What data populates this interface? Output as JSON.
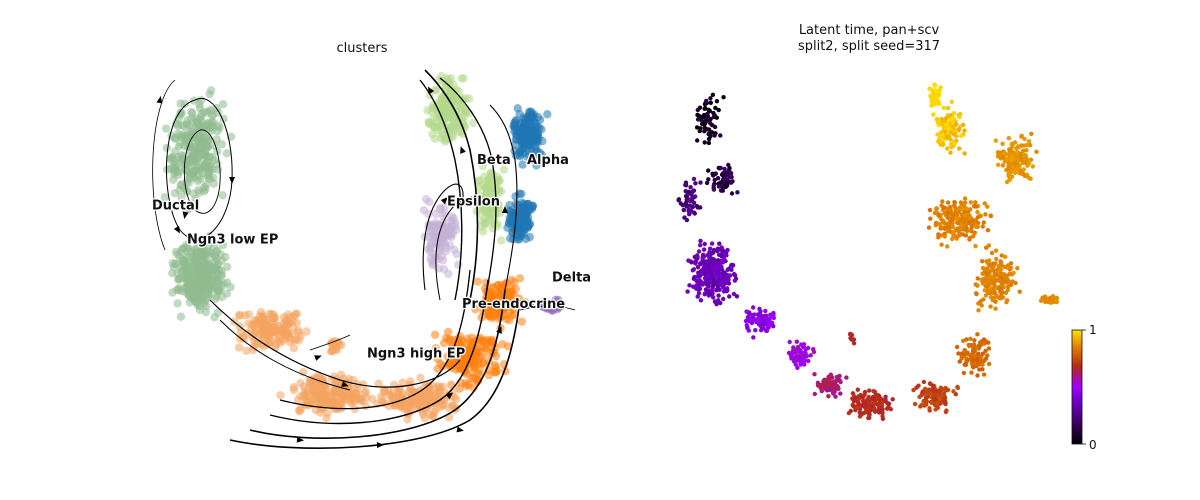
{
  "chart_data": [
    {
      "type": "scatter",
      "subtype": "velocity-stream-embedding",
      "title": "clusters",
      "axes_visible": false,
      "grid": false,
      "clusters": [
        {
          "name": "Ductal",
          "color": "#8fbc8f",
          "label_pos": [
            -4.2,
            0.7
          ]
        },
        {
          "name": "Ngn3 low EP",
          "color": "#8fbc8f",
          "label_pos": [
            -3.5,
            -0.2
          ]
        },
        {
          "name": "Ngn3 high EP",
          "color": "#f4a460",
          "label_pos": [
            0.1,
            -3.2
          ]
        },
        {
          "name": "Pre-endocrine",
          "color": "#ff7f0e",
          "label_pos": [
            2.0,
            -1.9
          ]
        },
        {
          "name": "Beta",
          "color": "#b5d88a",
          "label_pos": [
            2.3,
            1.9
          ]
        },
        {
          "name": "Alpha",
          "color": "#1f77b4",
          "label_pos": [
            3.3,
            1.9
          ]
        },
        {
          "name": "Delta",
          "color": "#9467bd",
          "label_pos": [
            3.8,
            -1.2
          ]
        },
        {
          "name": "Epsilon",
          "color": "#c5b0d5",
          "label_pos": [
            1.7,
            0.8
          ]
        }
      ]
    },
    {
      "type": "scatter",
      "subtype": "embedding-colored-by-continuous",
      "title": "Latent time, pan+scv\nsplit2, split seed=317",
      "axes_visible": false,
      "grid": false,
      "color_variable": "latent time",
      "colormap": "gnuplot",
      "colorbar": {
        "min": 0,
        "max": 1,
        "ticks": [
          "0",
          "1"
        ],
        "placement": "right"
      }
    }
  ]
}
